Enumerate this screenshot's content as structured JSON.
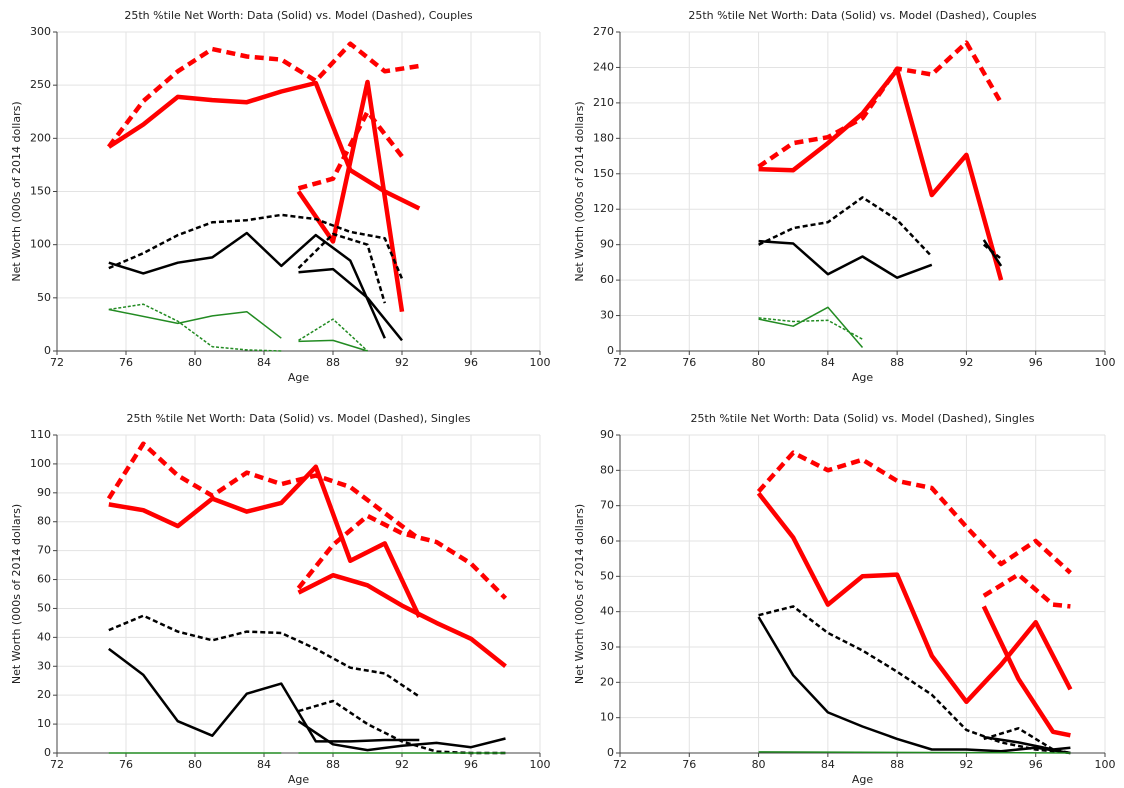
{
  "chart_data": [
    {
      "type": "line",
      "title": "25th %tile Net Worth: Data (Solid) vs. Model (Dashed), Couples",
      "xlabel": "Age",
      "ylabel": "Net Worth (000s of 2014 dollars)",
      "xlim": [
        72,
        100
      ],
      "xticks": [
        72,
        76,
        80,
        84,
        88,
        92,
        96,
        100
      ],
      "ylim": [
        0,
        300
      ],
      "yticks": [
        0,
        50,
        100,
        150,
        200,
        250,
        300
      ],
      "grid": true,
      "series": [
        {
          "color": "#ff0000",
          "style": "solid",
          "width": 4.5,
          "x": [
            75,
            77,
            79,
            81,
            83,
            85,
            87,
            89,
            91,
            93
          ],
          "values": [
            192,
            213,
            239,
            236,
            234,
            244,
            252,
            170,
            150,
            134
          ]
        },
        {
          "color": "#ff0000",
          "style": "dashed",
          "width": 4.5,
          "x": [
            75,
            77,
            79,
            81,
            83,
            85,
            87,
            89,
            91,
            93
          ],
          "values": [
            192,
            235,
            263,
            284,
            277,
            274,
            254,
            289,
            263,
            268
          ]
        },
        {
          "color": "#ff0000",
          "style": "solid",
          "width": 4.5,
          "x": [
            86,
            88,
            90,
            92
          ],
          "values": [
            150,
            103,
            253,
            37
          ]
        },
        {
          "color": "#ff0000",
          "style": "dashed",
          "width": 4.5,
          "x": [
            86,
            88,
            90,
            92
          ],
          "values": [
            153,
            162,
            225,
            183
          ]
        },
        {
          "color": "#000000",
          "style": "solid",
          "width": 2.5,
          "x": [
            75,
            77,
            79,
            81,
            83,
            85,
            87,
            89,
            91
          ],
          "values": [
            83,
            73,
            83,
            88,
            111,
            80,
            109,
            85,
            12
          ]
        },
        {
          "color": "#000000",
          "style": "dashed",
          "width": 2.5,
          "x": [
            75,
            77,
            79,
            81,
            83,
            85,
            87,
            89,
            91,
            92
          ],
          "values": [
            78,
            92,
            109,
            121,
            123,
            128,
            124,
            112,
            106,
            68
          ]
        },
        {
          "color": "#000000",
          "style": "solid",
          "width": 2.5,
          "x": [
            86,
            88,
            90,
            92
          ],
          "values": [
            74,
            77,
            50,
            10
          ]
        },
        {
          "color": "#000000",
          "style": "dashed",
          "width": 2.5,
          "x": [
            86,
            88,
            90,
            91
          ],
          "values": [
            78,
            110,
            100,
            45
          ]
        },
        {
          "color": "#228b22",
          "style": "solid",
          "width": 1.5,
          "x": [
            75,
            79,
            81,
            83,
            85
          ],
          "values": [
            39,
            26,
            33,
            37,
            12
          ]
        },
        {
          "color": "#228b22",
          "style": "dashed",
          "width": 1.5,
          "x": [
            75,
            77,
            79,
            81,
            83,
            85
          ],
          "values": [
            39,
            44,
            28,
            4,
            1,
            0
          ]
        },
        {
          "color": "#228b22",
          "style": "solid",
          "width": 1.5,
          "x": [
            86,
            88,
            90
          ],
          "values": [
            9,
            10,
            0
          ]
        },
        {
          "color": "#228b22",
          "style": "dashed",
          "width": 1.5,
          "x": [
            86,
            88,
            90
          ],
          "values": [
            10,
            30,
            0
          ]
        }
      ]
    },
    {
      "type": "line",
      "title": "25th %tile Net Worth: Data (Solid) vs. Model (Dashed), Couples",
      "xlabel": "Age",
      "ylabel": "Net Worth (000s of 2014 dollars)",
      "xlim": [
        72,
        100
      ],
      "xticks": [
        72,
        76,
        80,
        84,
        88,
        92,
        96,
        100
      ],
      "ylim": [
        0,
        270
      ],
      "yticks": [
        0,
        30,
        60,
        90,
        120,
        150,
        180,
        210,
        240,
        270
      ],
      "grid": true,
      "series": [
        {
          "color": "#ff0000",
          "style": "solid",
          "width": 4.5,
          "x": [
            80,
            82,
            84,
            86,
            88,
            90,
            92,
            94
          ],
          "values": [
            154,
            153,
            176,
            201,
            238,
            132,
            166,
            60
          ]
        },
        {
          "color": "#ff0000",
          "style": "dashed",
          "width": 4.5,
          "x": [
            80,
            82,
            84,
            86,
            88,
            90,
            92,
            94
          ],
          "values": [
            156,
            176,
            181,
            197,
            239,
            234,
            261,
            210
          ]
        },
        {
          "color": "#000000",
          "style": "solid",
          "width": 2.5,
          "x": [
            80,
            82,
            84,
            86,
            88,
            90
          ],
          "values": [
            93,
            91,
            65,
            80,
            62,
            73
          ]
        },
        {
          "color": "#000000",
          "style": "dashed",
          "width": 2.5,
          "x": [
            80,
            82,
            84,
            86,
            88,
            90
          ],
          "values": [
            90,
            104,
            109,
            130,
            111,
            80
          ]
        },
        {
          "color": "#000000",
          "style": "solid",
          "width": 2.5,
          "x": [
            93,
            94
          ],
          "values": [
            94,
            72
          ]
        },
        {
          "color": "#000000",
          "style": "dashed",
          "width": 2.5,
          "x": [
            93,
            94
          ],
          "values": [
            90,
            78
          ]
        },
        {
          "color": "#228b22",
          "style": "solid",
          "width": 1.5,
          "x": [
            80,
            82,
            84,
            86
          ],
          "values": [
            27,
            21,
            37,
            3
          ]
        },
        {
          "color": "#228b22",
          "style": "dashed",
          "width": 1.5,
          "x": [
            80,
            82,
            84,
            86
          ],
          "values": [
            28,
            25,
            26,
            10
          ]
        }
      ]
    },
    {
      "type": "line",
      "title": "25th %tile Net Worth: Data (Solid) vs. Model (Dashed), Singles",
      "xlabel": "Age",
      "ylabel": "Net Worth (000s of 2014 dollars)",
      "xlim": [
        72,
        100
      ],
      "xticks": [
        72,
        76,
        80,
        84,
        88,
        92,
        96,
        100
      ],
      "ylim": [
        0,
        110
      ],
      "yticks": [
        0,
        10,
        20,
        30,
        40,
        50,
        60,
        70,
        80,
        90,
        100,
        110
      ],
      "grid": true,
      "series": [
        {
          "color": "#ff0000",
          "style": "solid",
          "width": 4.5,
          "x": [
            75,
            77,
            79,
            81,
            83,
            85,
            87,
            89,
            91,
            93
          ],
          "values": [
            86,
            84,
            78.5,
            88,
            83.5,
            86.5,
            99,
            66.5,
            72.5,
            47
          ]
        },
        {
          "color": "#ff0000",
          "style": "dashed",
          "width": 4.5,
          "x": [
            75,
            77,
            79,
            81,
            83,
            85,
            87,
            89,
            91,
            93
          ],
          "values": [
            88,
            107,
            96,
            89,
            97,
            93,
            96,
            92,
            83,
            74
          ]
        },
        {
          "color": "#ff0000",
          "style": "solid",
          "width": 4.5,
          "x": [
            86,
            88,
            90,
            92,
            94,
            96,
            98
          ],
          "values": [
            55.5,
            61.5,
            58,
            51,
            45,
            39.5,
            30
          ]
        },
        {
          "color": "#ff0000",
          "style": "dashed",
          "width": 4.5,
          "x": [
            86,
            88,
            90,
            92,
            94,
            96,
            98
          ],
          "values": [
            57,
            72,
            82,
            76,
            73,
            65.5,
            53.5
          ]
        },
        {
          "color": "#000000",
          "style": "solid",
          "width": 2.5,
          "x": [
            75,
            77,
            79,
            81,
            83,
            85,
            87,
            89,
            91,
            93
          ],
          "values": [
            36,
            27,
            11,
            6,
            20.5,
            24,
            4,
            4,
            4.5,
            4.5
          ]
        },
        {
          "color": "#000000",
          "style": "dashed",
          "width": 2.5,
          "x": [
            75,
            77,
            79,
            81,
            83,
            85,
            87,
            89,
            91,
            93
          ],
          "values": [
            42.5,
            47.5,
            42,
            39,
            42,
            41.5,
            36,
            29.5,
            27.5,
            19.5
          ]
        },
        {
          "color": "#000000",
          "style": "solid",
          "width": 2.5,
          "x": [
            86,
            88,
            90,
            92,
            94,
            96,
            98
          ],
          "values": [
            11,
            3,
            1,
            2.5,
            3.5,
            2,
            5
          ]
        },
        {
          "color": "#000000",
          "style": "dashed",
          "width": 2.5,
          "x": [
            86,
            88,
            90,
            92,
            94,
            96,
            98
          ],
          "values": [
            14.5,
            18,
            10,
            4,
            0.5,
            0,
            0
          ]
        },
        {
          "color": "#228b22",
          "style": "solid",
          "width": 1.5,
          "x": [
            75,
            85
          ],
          "values": [
            0,
            0
          ]
        },
        {
          "color": "#228b22",
          "style": "solid",
          "width": 1.5,
          "x": [
            86,
            98
          ],
          "values": [
            0,
            0
          ]
        }
      ]
    },
    {
      "type": "line",
      "title": "25th %tile Net Worth: Data (Solid) vs. Model (Dashed), Singles",
      "xlabel": "Age",
      "ylabel": "Net Worth (000s of 2014 dollars)",
      "xlim": [
        72,
        100
      ],
      "xticks": [
        72,
        76,
        80,
        84,
        88,
        92,
        96,
        100
      ],
      "ylim": [
        0,
        90
      ],
      "yticks": [
        0,
        10,
        20,
        30,
        40,
        50,
        60,
        70,
        80,
        90
      ],
      "grid": true,
      "series": [
        {
          "color": "#ff0000",
          "style": "solid",
          "width": 4.5,
          "x": [
            80,
            82,
            84,
            86,
            88,
            90,
            92,
            94,
            96,
            98
          ],
          "values": [
            73.5,
            61,
            42,
            50,
            50.5,
            27.5,
            14.5,
            25,
            37,
            18
          ]
        },
        {
          "color": "#ff0000",
          "style": "dashed",
          "width": 4.5,
          "x": [
            80,
            82,
            84,
            86,
            88,
            90,
            92,
            94,
            96,
            98
          ],
          "values": [
            74,
            85,
            80,
            83,
            77,
            75,
            64,
            53.5,
            60,
            51
          ]
        },
        {
          "color": "#ff0000",
          "style": "solid",
          "width": 4.5,
          "x": [
            93,
            95,
            97,
            98
          ],
          "values": [
            41.5,
            21,
            6,
            5
          ]
        },
        {
          "color": "#ff0000",
          "style": "dashed",
          "width": 4.5,
          "x": [
            93,
            95,
            97,
            98
          ],
          "values": [
            44.5,
            50.5,
            42,
            41.5
          ]
        },
        {
          "color": "#000000",
          "style": "solid",
          "width": 2.5,
          "x": [
            80,
            82,
            84,
            86,
            88,
            90,
            92,
            94,
            96,
            98
          ],
          "values": [
            38.5,
            22,
            11.5,
            7.5,
            4,
            1,
            1,
            0.5,
            1.5,
            0
          ]
        },
        {
          "color": "#000000",
          "style": "dashed",
          "width": 2.5,
          "x": [
            80,
            82,
            84,
            86,
            88,
            90,
            92,
            94,
            96,
            98
          ],
          "values": [
            39,
            41.5,
            34,
            29,
            23,
            16.5,
            6.5,
            3,
            1,
            0
          ]
        },
        {
          "color": "#000000",
          "style": "solid",
          "width": 2.5,
          "x": [
            93,
            95,
            97,
            98
          ],
          "values": [
            4.5,
            3,
            1,
            1.5
          ]
        },
        {
          "color": "#000000",
          "style": "dashed",
          "width": 2.5,
          "x": [
            93,
            95,
            97,
            98
          ],
          "values": [
            4,
            7,
            1,
            0
          ]
        },
        {
          "color": "#228b22",
          "style": "solid",
          "width": 1.5,
          "x": [
            80,
            98
          ],
          "values": [
            0.3,
            0
          ]
        }
      ]
    }
  ]
}
